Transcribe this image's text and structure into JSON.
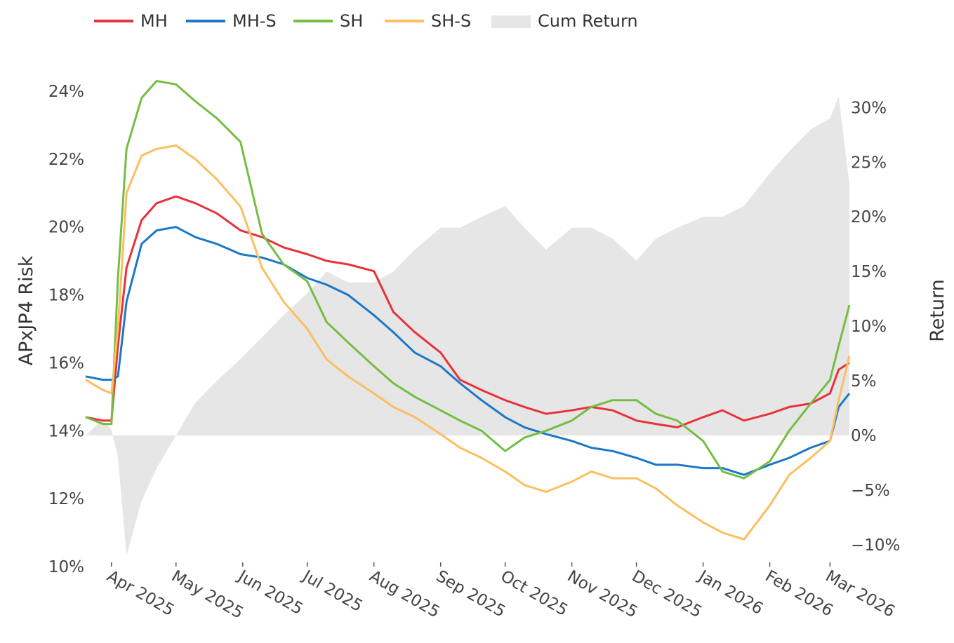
{
  "chart_data": {
    "type": "line",
    "title": "",
    "xlabel": "",
    "ylabel": "APxJP4 Risk",
    "y2label": "Return",
    "ylim": [
      10,
      24
    ],
    "y2lim": [
      -12,
      31.5
    ],
    "legend_position": "top",
    "grid": false,
    "x": [
      "2025-03-20",
      "2025-03-28",
      "2025-04-01",
      "2025-04-04",
      "2025-04-08",
      "2025-04-15",
      "2025-04-22",
      "2025-05-01",
      "2025-05-10",
      "2025-05-20",
      "2025-05-31",
      "2025-06-10",
      "2025-06-20",
      "2025-07-01",
      "2025-07-10",
      "2025-07-20",
      "2025-08-01",
      "2025-08-10",
      "2025-08-20",
      "2025-09-01",
      "2025-09-10",
      "2025-09-20",
      "2025-10-01",
      "2025-10-10",
      "2025-10-20",
      "2025-11-01",
      "2025-11-10",
      "2025-11-20",
      "2025-12-01",
      "2025-12-10",
      "2025-12-20",
      "2026-01-01",
      "2026-01-10",
      "2026-01-20",
      "2026-02-01",
      "2026-02-10",
      "2026-02-20",
      "2026-03-01",
      "2026-03-05",
      "2026-03-10"
    ],
    "x_tick_labels": [
      "Apr 2025",
      "May 2025",
      "Jun 2025",
      "Jul 2025",
      "Aug 2025",
      "Sep 2025",
      "Oct 2025",
      "Nov 2025",
      "Dec 2025",
      "Jan 2026",
      "Feb 2026",
      "Mar 2026"
    ],
    "y_tick_labels": [
      "10%",
      "12%",
      "14%",
      "16%",
      "18%",
      "20%",
      "22%",
      "24%"
    ],
    "y2_tick_labels": [
      "−10%",
      "−5%",
      "0%",
      "5%",
      "10%",
      "15%",
      "20%",
      "25%",
      "30%"
    ],
    "series": [
      {
        "name": "MH",
        "color": "#e8323a",
        "axis": "left",
        "values": [
          14.4,
          14.3,
          14.3,
          16.5,
          18.8,
          20.2,
          20.7,
          20.9,
          20.7,
          20.4,
          19.9,
          19.7,
          19.4,
          19.2,
          19.0,
          18.9,
          18.7,
          17.5,
          16.9,
          16.3,
          15.5,
          15.2,
          14.9,
          14.7,
          14.5,
          14.6,
          14.7,
          14.6,
          14.3,
          14.2,
          14.1,
          14.4,
          14.6,
          14.3,
          14.5,
          14.7,
          14.8,
          15.1,
          15.8,
          16.0
        ]
      },
      {
        "name": "MH-S",
        "color": "#1a78c8",
        "axis": "left",
        "values": [
          15.6,
          15.5,
          15.5,
          15.6,
          17.8,
          19.5,
          19.9,
          20.0,
          19.7,
          19.5,
          19.2,
          19.1,
          18.9,
          18.5,
          18.3,
          18.0,
          17.4,
          16.9,
          16.3,
          15.9,
          15.4,
          14.9,
          14.4,
          14.1,
          13.9,
          13.7,
          13.5,
          13.4,
          13.2,
          13.0,
          13.0,
          12.9,
          12.9,
          12.7,
          13.0,
          13.2,
          13.5,
          13.7,
          14.7,
          15.1
        ]
      },
      {
        "name": "SH",
        "color": "#74be42",
        "axis": "left",
        "values": [
          14.4,
          14.2,
          14.2,
          18.5,
          22.3,
          23.8,
          24.3,
          24.2,
          23.7,
          23.2,
          22.5,
          19.8,
          18.9,
          18.4,
          17.2,
          16.6,
          15.9,
          15.4,
          15.0,
          14.6,
          14.3,
          14.0,
          13.4,
          13.8,
          14.0,
          14.3,
          14.7,
          14.9,
          14.9,
          14.5,
          14.3,
          13.7,
          12.8,
          12.6,
          13.1,
          14.0,
          14.8,
          15.5,
          16.5,
          17.7
        ]
      },
      {
        "name": "SH-S",
        "color": "#fbbf60",
        "axis": "left",
        "values": [
          15.5,
          15.2,
          15.1,
          17.0,
          21.0,
          22.1,
          22.3,
          22.4,
          22.0,
          21.4,
          20.6,
          18.8,
          17.8,
          17.0,
          16.1,
          15.6,
          15.1,
          14.7,
          14.4,
          13.9,
          13.5,
          13.2,
          12.8,
          12.4,
          12.2,
          12.5,
          12.8,
          12.6,
          12.6,
          12.3,
          11.8,
          11.3,
          11.0,
          10.8,
          11.8,
          12.7,
          13.2,
          13.7,
          14.9,
          16.2
        ]
      },
      {
        "name": "Cum Return",
        "color": "#e6e6e6",
        "axis": "right",
        "type": "area",
        "values": [
          0,
          1.5,
          0.5,
          -2,
          -11,
          -6,
          -3,
          0,
          3,
          5,
          7,
          9,
          11,
          13,
          15,
          14,
          14,
          15,
          17,
          19,
          19,
          20,
          21,
          19,
          17,
          19,
          19,
          18,
          16,
          18,
          19,
          20,
          20,
          21,
          24,
          26,
          28,
          29,
          31,
          23
        ]
      }
    ]
  }
}
